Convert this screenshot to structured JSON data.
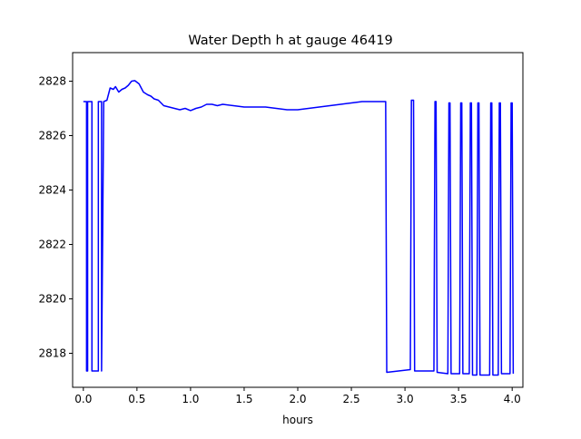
{
  "chart_data": {
    "type": "line",
    "title": "Water Depth h at gauge 46419",
    "xlabel": "hours",
    "ylabel": "",
    "xlim": [
      -0.1,
      4.1
    ],
    "ylim": [
      2816.75,
      2829.05
    ],
    "xticks": [
      0.0,
      0.5,
      1.0,
      1.5,
      2.0,
      2.5,
      3.0,
      3.5,
      4.0
    ],
    "xtick_labels": [
      "0.0",
      "0.5",
      "1.0",
      "1.5",
      "2.0",
      "2.5",
      "3.0",
      "3.5",
      "4.0"
    ],
    "yticks": [
      2818,
      2820,
      2822,
      2824,
      2826,
      2828
    ],
    "ytick_labels": [
      "2818",
      "2820",
      "2822",
      "2824",
      "2826",
      "2828"
    ],
    "grid": false,
    "series": [
      {
        "color": "#0000ff",
        "x": [
          0.0,
          0.03,
          0.03,
          0.04,
          0.04,
          0.07,
          0.08,
          0.08,
          0.13,
          0.14,
          0.14,
          0.16,
          0.17,
          0.17,
          0.19,
          0.22,
          0.25,
          0.28,
          0.3,
          0.33,
          0.36,
          0.39,
          0.42,
          0.45,
          0.48,
          0.52,
          0.56,
          0.6,
          0.63,
          0.66,
          0.7,
          0.75,
          0.8,
          0.85,
          0.9,
          0.95,
          1.0,
          1.05,
          1.1,
          1.15,
          1.2,
          1.25,
          1.3,
          1.4,
          1.5,
          1.6,
          1.7,
          1.8,
          1.9,
          2.0,
          2.1,
          2.2,
          2.3,
          2.4,
          2.5,
          2.6,
          2.7,
          2.82,
          2.83,
          3.05,
          3.06,
          3.08,
          3.09,
          3.27,
          3.28,
          3.29,
          3.3,
          3.4,
          3.41,
          3.42,
          3.43,
          3.51,
          3.52,
          3.53,
          3.54,
          3.6,
          3.61,
          3.62,
          3.63,
          3.67,
          3.68,
          3.69,
          3.7,
          3.79,
          3.8,
          3.81,
          3.82,
          3.87,
          3.88,
          3.89,
          3.9,
          3.98,
          3.99,
          4.0,
          4.01
        ],
        "y": [
          2827.25,
          2827.25,
          2817.35,
          2817.35,
          2827.25,
          2827.25,
          2827.25,
          2817.35,
          2817.35,
          2817.35,
          2827.25,
          2827.25,
          2827.25,
          2817.35,
          2827.25,
          2827.3,
          2827.75,
          2827.7,
          2827.8,
          2827.6,
          2827.7,
          2827.75,
          2827.85,
          2828.0,
          2828.02,
          2827.9,
          2827.6,
          2827.5,
          2827.45,
          2827.35,
          2827.3,
          2827.1,
          2827.05,
          2827.0,
          2826.95,
          2827.0,
          2826.92,
          2827.0,
          2827.05,
          2827.15,
          2827.15,
          2827.1,
          2827.15,
          2827.1,
          2827.05,
          2827.05,
          2827.05,
          2827.0,
          2826.95,
          2826.95,
          2827.0,
          2827.05,
          2827.1,
          2827.15,
          2827.2,
          2827.25,
          2827.25,
          2827.25,
          2817.3,
          2817.4,
          2827.3,
          2827.3,
          2817.35,
          2817.35,
          2827.25,
          2827.25,
          2817.3,
          2817.25,
          2827.2,
          2827.2,
          2817.25,
          2817.25,
          2827.2,
          2827.2,
          2817.25,
          2817.25,
          2827.2,
          2827.2,
          2817.2,
          2817.2,
          2827.2,
          2827.2,
          2817.2,
          2817.2,
          2827.2,
          2827.2,
          2817.2,
          2817.2,
          2827.2,
          2827.2,
          2817.25,
          2817.25,
          2827.2,
          2827.2,
          2817.25
        ]
      }
    ]
  }
}
